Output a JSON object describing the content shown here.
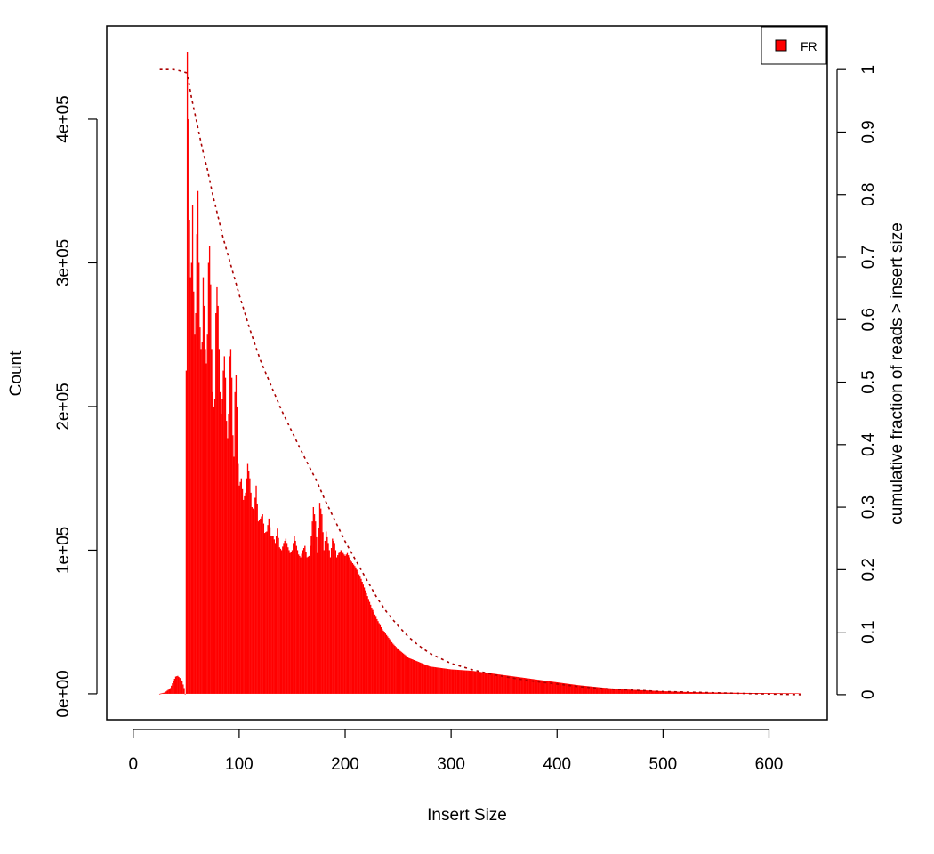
{
  "chart_data": {
    "type": "bar",
    "title": "",
    "xlabel": "Insert Size",
    "ylabel": "Count",
    "y2label": "cumulative fraction of reads > insert size",
    "xlim": [
      -25,
      655
    ],
    "ylim": [
      -18000,
      465000
    ],
    "y2lim": [
      -0.04,
      1.07
    ],
    "x_ticks": [
      0,
      100,
      200,
      300,
      400,
      500,
      600
    ],
    "x_tick_labels": [
      "0",
      "100",
      "200",
      "300",
      "400",
      "500",
      "600"
    ],
    "y_ticks": [
      0,
      100000,
      200000,
      300000,
      400000
    ],
    "y_tick_labels": [
      "0e+00",
      "1e+05",
      "2e+05",
      "3e+05",
      "4e+05"
    ],
    "y2_ticks": [
      0,
      0.1,
      0.2,
      0.3,
      0.4,
      0.5,
      0.6,
      0.7,
      0.8,
      0.9,
      1
    ],
    "y2_tick_labels": [
      "0",
      "0.1",
      "0.2",
      "0.3",
      "0.4",
      "0.5",
      "0.6",
      "0.7",
      "0.8",
      "0.9",
      "1"
    ],
    "legend": {
      "position": "top-right",
      "label": "FR",
      "color": "#ff0000"
    },
    "bar_color": "#ff0000",
    "cumulative_color": "#aa0000",
    "series": [
      {
        "name": "FR",
        "kind": "histogram",
        "x": [
          25,
          30,
          35,
          38,
          40,
          42,
          44,
          46,
          48,
          49,
          50,
          51,
          52,
          53,
          54,
          55,
          56,
          57,
          58,
          59,
          60,
          61,
          62,
          63,
          64,
          65,
          66,
          67,
          68,
          69,
          70,
          71,
          72,
          73,
          74,
          75,
          76,
          77,
          78,
          79,
          80,
          81,
          82,
          83,
          84,
          85,
          86,
          87,
          88,
          89,
          90,
          91,
          92,
          93,
          94,
          95,
          96,
          97,
          98,
          99,
          100,
          102,
          104,
          106,
          108,
          110,
          112,
          114,
          116,
          118,
          120,
          122,
          124,
          126,
          128,
          130,
          132,
          134,
          136,
          138,
          140,
          142,
          144,
          146,
          148,
          150,
          152,
          154,
          156,
          158,
          160,
          162,
          164,
          166,
          168,
          170,
          172,
          174,
          176,
          178,
          180,
          182,
          184,
          186,
          188,
          190,
          192,
          194,
          196,
          198,
          200,
          202,
          204,
          206,
          208,
          210,
          215,
          220,
          225,
          230,
          235,
          240,
          245,
          250,
          260,
          270,
          280,
          290,
          300,
          320,
          340,
          360,
          380,
          400,
          420,
          440,
          460,
          480,
          500,
          520,
          540,
          560,
          580,
          600,
          620,
          630
        ],
        "y": [
          0,
          1000,
          4000,
          9000,
          12000,
          12500,
          11000,
          9000,
          4000,
          0,
          225000,
          447000,
          400000,
          330000,
          290000,
          300000,
          340000,
          280000,
          250000,
          265000,
          320000,
          350000,
          300000,
          255000,
          240000,
          245000,
          290000,
          270000,
          240000,
          230000,
          250000,
          300000,
          312000,
          285000,
          240000,
          210000,
          200000,
          205000,
          265000,
          283000,
          270000,
          240000,
          210000,
          195000,
          205000,
          225000,
          235000,
          220000,
          190000,
          178000,
          195000,
          235000,
          240000,
          220000,
          180000,
          165000,
          210000,
          222000,
          200000,
          160000,
          145000,
          150000,
          135000,
          140000,
          160000,
          150000,
          130000,
          128000,
          145000,
          120000,
          122000,
          125000,
          112000,
          113000,
          122000,
          110000,
          110000,
          105000,
          115000,
          102000,
          100000,
          105000,
          108000,
          102000,
          98000,
          100000,
          110000,
          103000,
          97000,
          95000,
          100000,
          103000,
          95000,
          96000,
          110000,
          130000,
          120000,
          98000,
          133000,
          125000,
          100000,
          113000,
          105000,
          95000,
          108000,
          105000,
          95000,
          98000,
          100000,
          98000,
          96000,
          98000,
          95000,
          92000,
          90000,
          88000,
          80000,
          70000,
          60000,
          52000,
          45000,
          40000,
          35000,
          31000,
          25000,
          22000,
          19000,
          18000,
          17000,
          16000,
          14000,
          12000,
          10000,
          8000,
          6000,
          4500,
          3200,
          2500,
          1800,
          1300,
          1000,
          800,
          600,
          500,
          400,
          300
        ]
      },
      {
        "name": "cumulative fraction",
        "kind": "line",
        "style": "dotted",
        "x": [
          25,
          38,
          44,
          50,
          52,
          55,
          60,
          65,
          70,
          75,
          80,
          85,
          90,
          100,
          110,
          120,
          130,
          140,
          150,
          160,
          170,
          175,
          180,
          190,
          200,
          210,
          220,
          230,
          240,
          250,
          260,
          270,
          280,
          300,
          320,
          340,
          360,
          380,
          400,
          420,
          450,
          500,
          550,
          600,
          630
        ],
        "y": [
          1.0,
          1.0,
          0.998,
          0.995,
          0.985,
          0.955,
          0.915,
          0.875,
          0.84,
          0.8,
          0.765,
          0.73,
          0.7,
          0.64,
          0.585,
          0.535,
          0.495,
          0.455,
          0.42,
          0.385,
          0.352,
          0.335,
          0.315,
          0.28,
          0.245,
          0.215,
          0.185,
          0.155,
          0.13,
          0.11,
          0.092,
          0.078,
          0.066,
          0.05,
          0.04,
          0.032,
          0.026,
          0.021,
          0.017,
          0.013,
          0.009,
          0.005,
          0.003,
          0.001,
          0.0
        ]
      }
    ]
  }
}
